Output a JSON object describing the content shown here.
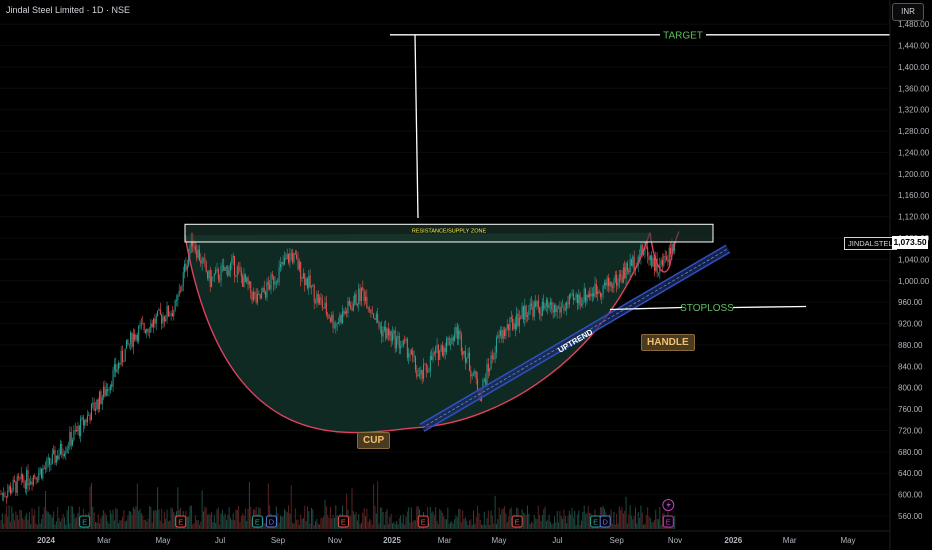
{
  "header": {
    "title": "Jindal Steel Limited · 1D · NSE",
    "currency": "INR"
  },
  "ticker": {
    "symbol": "JINDALSTEL",
    "last_price": "1,073.50"
  },
  "annotations": {
    "target": "TARGET",
    "resistance": "RESISTANCE/SUPPLY ZONE",
    "stoploss": "STOPLOSS",
    "uptrend": "UPTREND",
    "cup": "CUP",
    "handle": "HANDLE"
  },
  "colors": {
    "background": "#000000",
    "up": "#26a69a",
    "down": "#ef5350",
    "curve": "#e04060",
    "trend": "#3050c0",
    "cup_fill": "#0f2a22"
  },
  "chart_data": {
    "type": "line",
    "title": "Jindal Steel Limited · 1D · NSE",
    "y_ticks": [
      "1,480.00",
      "1,440.00",
      "1,400.00",
      "1,360.00",
      "1,320.00",
      "1,280.00",
      "1,240.00",
      "1,200.00",
      "1,160.00",
      "1,120.00",
      "1,080.00",
      "1,040.00",
      "1,000.00",
      "960.00",
      "920.00",
      "880.00",
      "840.00",
      "800.00",
      "760.00",
      "720.00",
      "680.00",
      "640.00",
      "600.00",
      "560.00"
    ],
    "x_ticks": [
      "2024",
      "Mar",
      "May",
      "Jul",
      "Sep",
      "Nov",
      "2025",
      "Mar",
      "May",
      "Jul",
      "Sep",
      "Nov",
      "2026",
      "Mar",
      "May"
    ],
    "ylim": [
      530,
      1490
    ],
    "series": [
      {
        "values": [
          {
            "date": "2023-12-01",
            "price": 600
          },
          {
            "date": "2024-01-01",
            "price": 650
          },
          {
            "date": "2024-02-01",
            "price": 715
          },
          {
            "date": "2024-03-01",
            "price": 790
          },
          {
            "date": "2024-04-01",
            "price": 900
          },
          {
            "date": "2024-05-15",
            "price": 950
          },
          {
            "date": "2024-06-01",
            "price": 1080
          },
          {
            "date": "2024-06-20",
            "price": 1000
          },
          {
            "date": "2024-07-15",
            "price": 1030
          },
          {
            "date": "2024-08-10",
            "price": 960
          },
          {
            "date": "2024-09-15",
            "price": 1050
          },
          {
            "date": "2024-10-10",
            "price": 975
          },
          {
            "date": "2024-11-01",
            "price": 920
          },
          {
            "date": "2024-12-01",
            "price": 980
          },
          {
            "date": "2024-12-20",
            "price": 910
          },
          {
            "date": "2025-01-20",
            "price": 870
          },
          {
            "date": "2025-02-01",
            "price": 815
          },
          {
            "date": "2025-02-15",
            "price": 855
          },
          {
            "date": "2025-03-15",
            "price": 905
          },
          {
            "date": "2025-04-10",
            "price": 790
          },
          {
            "date": "2025-05-01",
            "price": 895
          },
          {
            "date": "2025-06-01",
            "price": 950
          },
          {
            "date": "2025-07-01",
            "price": 945
          },
          {
            "date": "2025-08-01",
            "price": 975
          },
          {
            "date": "2025-09-01",
            "price": 1000
          },
          {
            "date": "2025-10-01",
            "price": 1060
          },
          {
            "date": "2025-10-15",
            "price": 1020
          },
          {
            "date": "2025-11-01",
            "price": 1073.5
          }
        ]
      }
    ],
    "levels": {
      "target": 1460,
      "resistance_top": 1100,
      "resistance_bottom": 1080,
      "stoploss": 950
    }
  }
}
